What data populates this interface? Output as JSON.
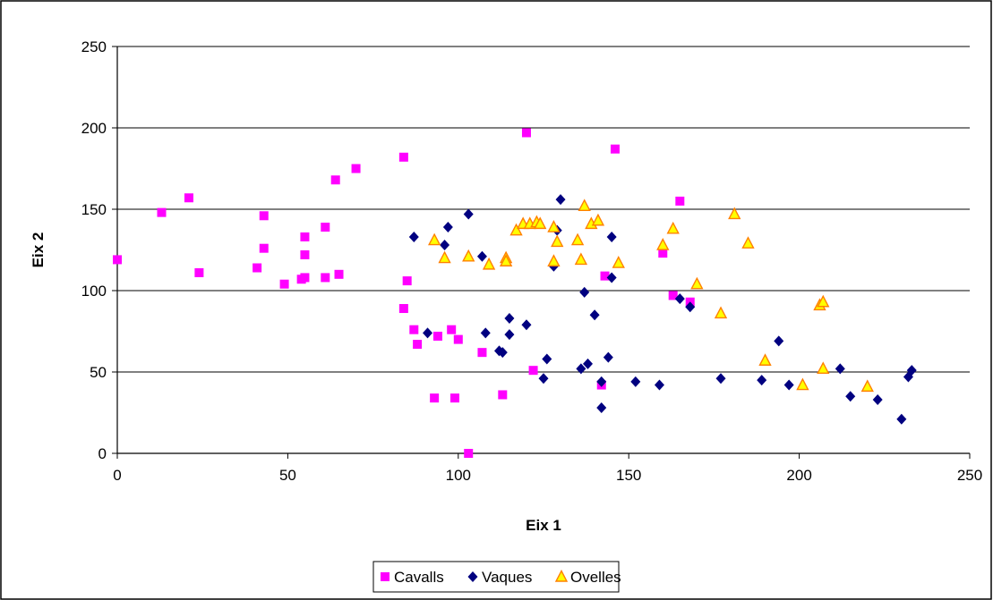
{
  "chart_data": {
    "type": "scatter",
    "xlabel": "Eix 1",
    "ylabel": "Eix 2",
    "xlim": [
      0,
      250
    ],
    "ylim": [
      0,
      250
    ],
    "xticks": [
      "0",
      "50",
      "100",
      "150",
      "200",
      "250"
    ],
    "yticks": [
      "0",
      "50",
      "100",
      "150",
      "200",
      "250"
    ],
    "grid": "horizontal",
    "legend_position": "bottom",
    "series": [
      {
        "name": "Cavalls",
        "marker": "square",
        "color": "#ff00ff",
        "points": [
          [
            0,
            119
          ],
          [
            13,
            148
          ],
          [
            21,
            157
          ],
          [
            24,
            111
          ],
          [
            41,
            114
          ],
          [
            43,
            146
          ],
          [
            43,
            126
          ],
          [
            49,
            104
          ],
          [
            54,
            107
          ],
          [
            55,
            133
          ],
          [
            55,
            122
          ],
          [
            55,
            108
          ],
          [
            61,
            139
          ],
          [
            61,
            108
          ],
          [
            64,
            168
          ],
          [
            65,
            110
          ],
          [
            70,
            175
          ],
          [
            84,
            182
          ],
          [
            84,
            89
          ],
          [
            85,
            106
          ],
          [
            87,
            76
          ],
          [
            88,
            67
          ],
          [
            93,
            34
          ],
          [
            94,
            72
          ],
          [
            98,
            76
          ],
          [
            99,
            34
          ],
          [
            100,
            70
          ],
          [
            103,
            0
          ],
          [
            107,
            62
          ],
          [
            113,
            36
          ],
          [
            120,
            197
          ],
          [
            122,
            51
          ],
          [
            142,
            42
          ],
          [
            143,
            109
          ],
          [
            146,
            187
          ],
          [
            160,
            123
          ],
          [
            163,
            97
          ],
          [
            165,
            155
          ],
          [
            168,
            93
          ]
        ]
      },
      {
        "name": "Vaques",
        "marker": "diamond",
        "color": "#000080",
        "points": [
          [
            87,
            133
          ],
          [
            91,
            74
          ],
          [
            96,
            128
          ],
          [
            97,
            139
          ],
          [
            103,
            147
          ],
          [
            107,
            121
          ],
          [
            108,
            74
          ],
          [
            112,
            63
          ],
          [
            113,
            62
          ],
          [
            115,
            83
          ],
          [
            115,
            73
          ],
          [
            120,
            79
          ],
          [
            125,
            46
          ],
          [
            126,
            58
          ],
          [
            128,
            115
          ],
          [
            129,
            137
          ],
          [
            130,
            156
          ],
          [
            136,
            52
          ],
          [
            137,
            99
          ],
          [
            138,
            55
          ],
          [
            140,
            85
          ],
          [
            142,
            28
          ],
          [
            142,
            44
          ],
          [
            144,
            59
          ],
          [
            145,
            133
          ],
          [
            145,
            108
          ],
          [
            152,
            44
          ],
          [
            159,
            42
          ],
          [
            165,
            95
          ],
          [
            168,
            90
          ],
          [
            177,
            46
          ],
          [
            189,
            45
          ],
          [
            194,
            69
          ],
          [
            197,
            42
          ],
          [
            212,
            52
          ],
          [
            215,
            35
          ],
          [
            223,
            33
          ],
          [
            230,
            21
          ],
          [
            232,
            47
          ],
          [
            233,
            51
          ]
        ]
      },
      {
        "name": "Ovelles",
        "marker": "triangle",
        "color": "#ffff00",
        "stroke": "#ff8000",
        "points": [
          [
            93,
            131
          ],
          [
            96,
            120
          ],
          [
            103,
            121
          ],
          [
            109,
            116
          ],
          [
            114,
            120
          ],
          [
            114,
            118
          ],
          [
            117,
            137
          ],
          [
            119,
            141
          ],
          [
            121,
            141
          ],
          [
            123,
            142
          ],
          [
            124,
            141
          ],
          [
            128,
            139
          ],
          [
            128,
            118
          ],
          [
            129,
            130
          ],
          [
            135,
            131
          ],
          [
            136,
            119
          ],
          [
            137,
            152
          ],
          [
            139,
            141
          ],
          [
            141,
            143
          ],
          [
            147,
            117
          ],
          [
            160,
            128
          ],
          [
            163,
            138
          ],
          [
            170,
            104
          ],
          [
            177,
            86
          ],
          [
            181,
            147
          ],
          [
            185,
            129
          ],
          [
            190,
            57
          ],
          [
            201,
            42
          ],
          [
            206,
            91
          ],
          [
            207,
            93
          ],
          [
            207,
            52
          ],
          [
            220,
            41
          ]
        ]
      }
    ]
  }
}
